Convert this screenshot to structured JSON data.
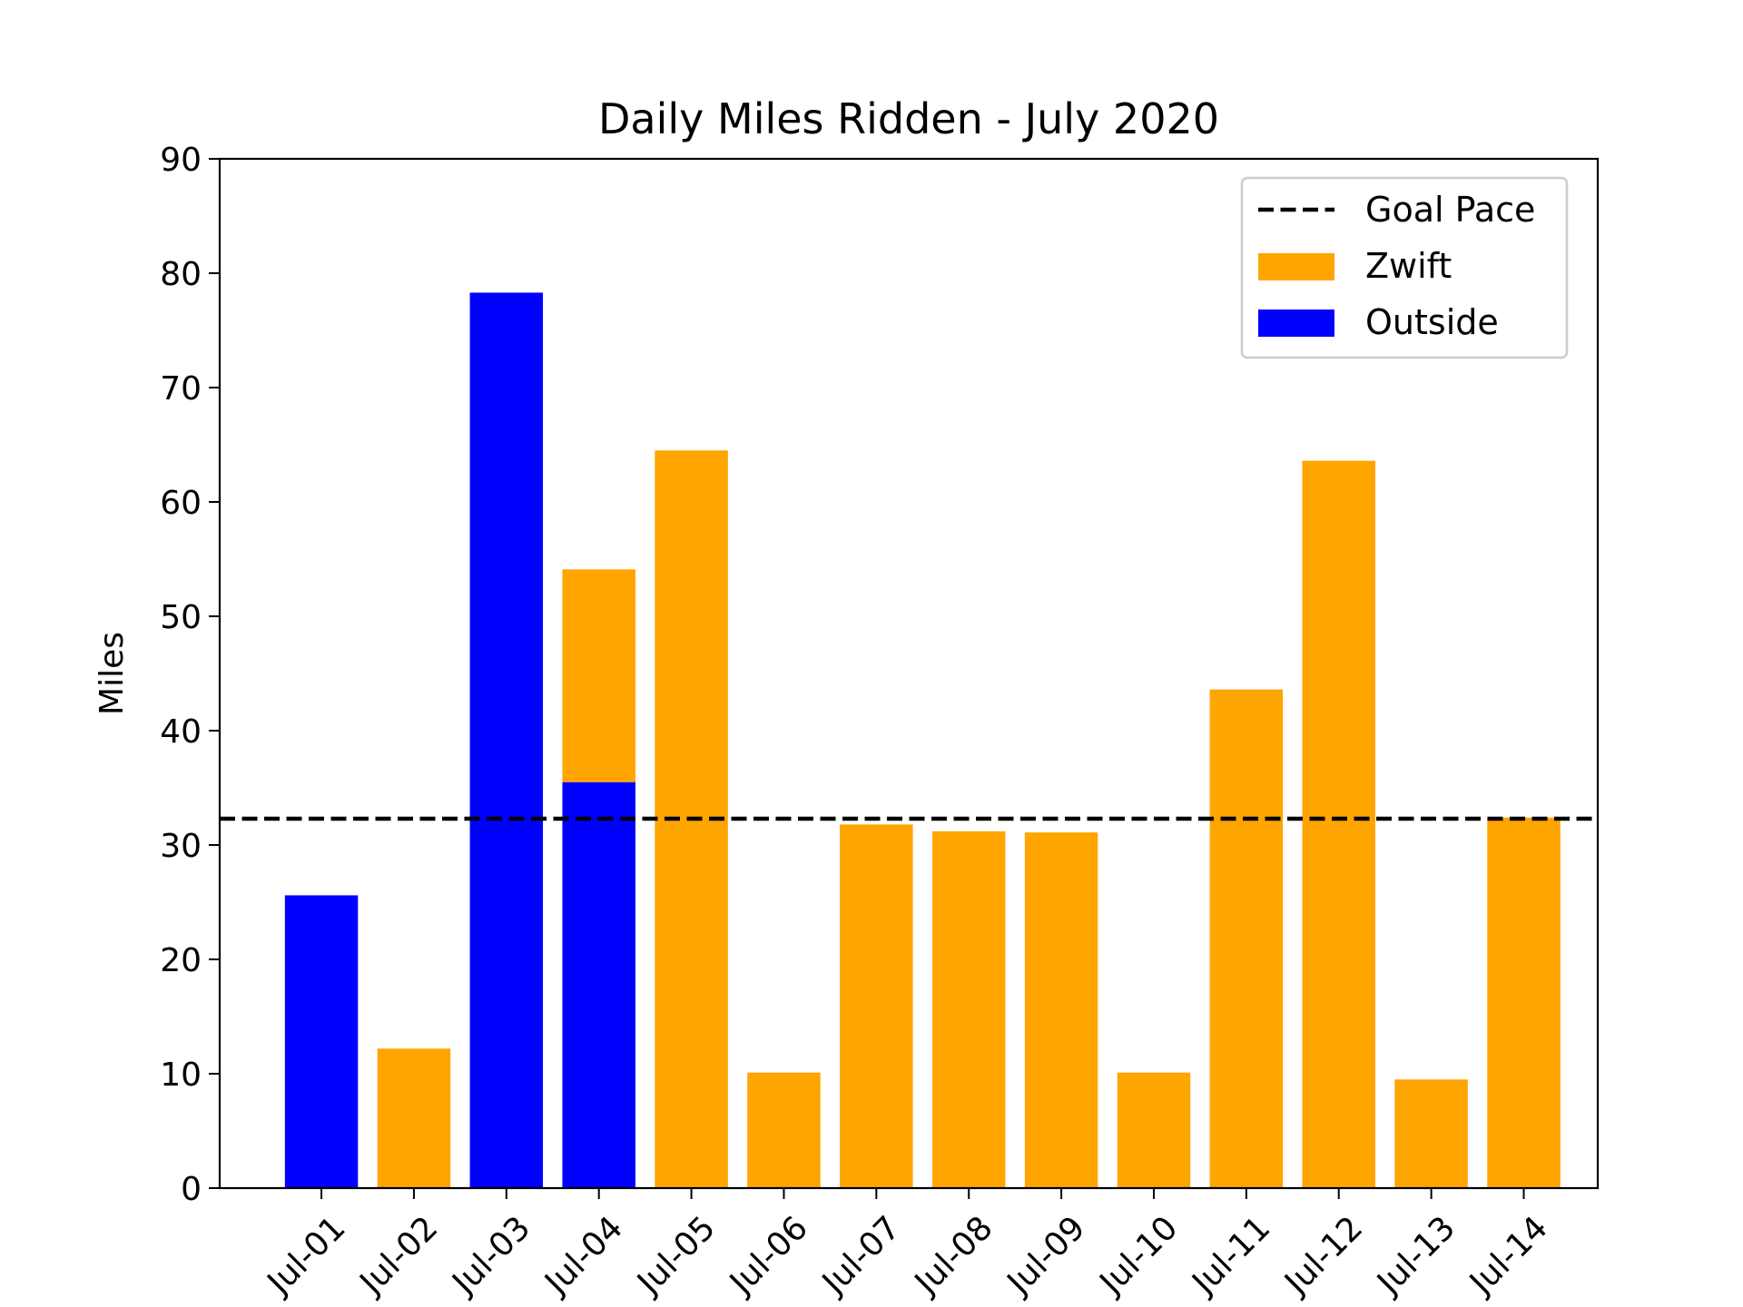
{
  "chart_data": {
    "type": "bar",
    "title": "Daily Miles Ridden - July 2020",
    "xlabel": "",
    "ylabel": "Miles",
    "ylim": [
      0,
      90
    ],
    "yticks": [
      0,
      10,
      20,
      30,
      40,
      50,
      60,
      70,
      80,
      90
    ],
    "stacked": true,
    "grid": false,
    "legend_position": "top-right",
    "categories": [
      "Jul-01",
      "Jul-02",
      "Jul-03",
      "Jul-04",
      "Jul-05",
      "Jul-06",
      "Jul-07",
      "Jul-08",
      "Jul-09",
      "Jul-10",
      "Jul-11",
      "Jul-12",
      "Jul-13",
      "Jul-14"
    ],
    "series": [
      {
        "name": "Outside",
        "color": "#0000ff",
        "values": [
          25.6,
          0,
          78.3,
          35.5,
          0,
          0,
          0,
          0,
          0,
          0,
          0,
          0,
          0,
          0
        ]
      },
      {
        "name": "Zwift",
        "color": "#ffa500",
        "values": [
          0,
          12.2,
          0,
          18.6,
          64.5,
          10.1,
          31.8,
          31.2,
          31.1,
          10.1,
          43.6,
          63.6,
          9.5,
          32.4
        ]
      }
    ],
    "reference_line": {
      "name": "Goal Pace",
      "value": 32.3,
      "color": "#000000",
      "style": "dashed"
    },
    "legend_order": [
      "Goal Pace",
      "Zwift",
      "Outside"
    ]
  }
}
